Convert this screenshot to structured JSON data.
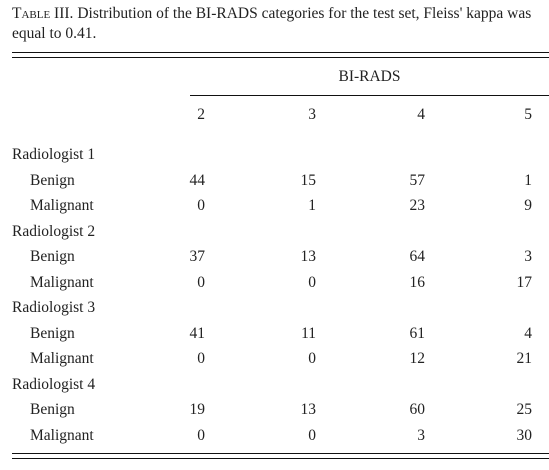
{
  "caption": {
    "label": "Table III.",
    "text": "Distribution of the BI-RADS categories for the test set, Fleiss' kappa was equal to 0.41."
  },
  "table": {
    "group_header": "BI-RADS",
    "columns": [
      "2",
      "3",
      "4",
      "5"
    ],
    "groups": [
      {
        "name": "Radiologist 1",
        "rows": [
          {
            "label": "Benign",
            "values": [
              44,
              15,
              57,
              1
            ]
          },
          {
            "label": "Malignant",
            "values": [
              0,
              1,
              23,
              9
            ]
          }
        ]
      },
      {
        "name": "Radiologist 2",
        "rows": [
          {
            "label": "Benign",
            "values": [
              37,
              13,
              64,
              3
            ]
          },
          {
            "label": "Malignant",
            "values": [
              0,
              0,
              16,
              17
            ]
          }
        ]
      },
      {
        "name": "Radiologist 3",
        "rows": [
          {
            "label": "Benign",
            "values": [
              41,
              11,
              61,
              4
            ]
          },
          {
            "label": "Malignant",
            "values": [
              0,
              0,
              12,
              21
            ]
          }
        ]
      },
      {
        "name": "Radiologist 4",
        "rows": [
          {
            "label": "Benign",
            "values": [
              19,
              13,
              60,
              25
            ]
          },
          {
            "label": "Malignant",
            "values": [
              0,
              0,
              3,
              30
            ]
          }
        ]
      }
    ]
  }
}
